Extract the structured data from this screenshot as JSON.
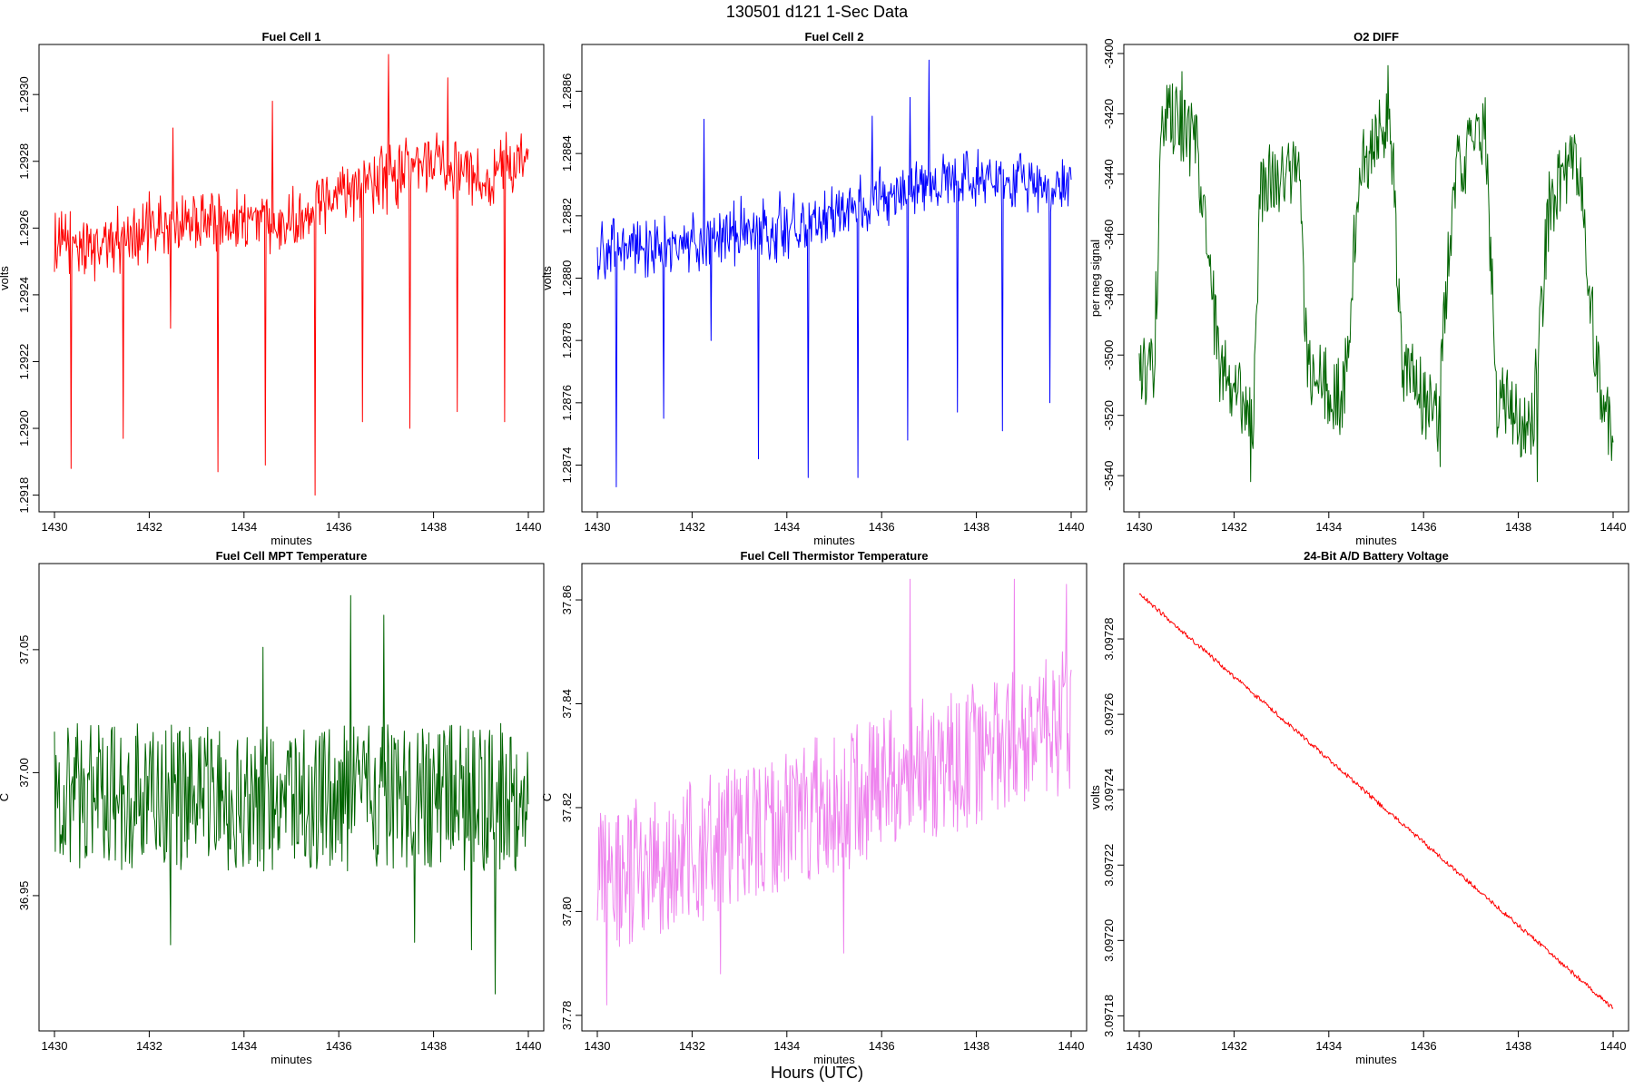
{
  "figure": {
    "title": "130501   d121   1-Sec Data",
    "xlabel": "Hours (UTC)"
  },
  "chart_data": [
    {
      "type": "line",
      "title": "Fuel Cell 1",
      "xlabel": "minutes",
      "ylabel": "volts",
      "color": "#ff0000",
      "xlim": [
        1430,
        1440
      ],
      "ylim": [
        1.29175,
        1.29315
      ],
      "xticks": [
        "1430",
        "1432",
        "1434",
        "1436",
        "1438",
        "1440"
      ],
      "yticks": [
        "1.2918",
        "1.2920",
        "1.2922",
        "1.2924",
        "1.2926",
        "1.2928",
        "1.2930"
      ],
      "ytick_values": [
        1.2918,
        1.292,
        1.2922,
        1.2924,
        1.2926,
        1.2928,
        1.293
      ],
      "noise": "spiky",
      "x": [
        1430,
        1431,
        1432,
        1433,
        1434,
        1435,
        1436,
        1437,
        1438,
        1439,
        1440
      ],
      "y": [
        1.29255,
        1.29255,
        1.2926,
        1.29262,
        1.29262,
        1.29262,
        1.29272,
        1.29275,
        1.2928,
        1.29276,
        1.2928
      ],
      "noise_amp": 0.00012,
      "dips": [
        [
          1430.35,
          1.29188
        ],
        [
          1431.45,
          1.29197
        ],
        [
          1432.45,
          1.2923
        ],
        [
          1433.45,
          1.29187
        ],
        [
          1434.45,
          1.29189
        ],
        [
          1435.5,
          1.2918
        ],
        [
          1436.5,
          1.29202
        ],
        [
          1437.5,
          1.292
        ],
        [
          1438.5,
          1.29205
        ],
        [
          1439.5,
          1.29202
        ]
      ],
      "peaks": [
        [
          1437.05,
          1.29312
        ],
        [
          1432.5,
          1.2929
        ],
        [
          1438.3,
          1.29305
        ],
        [
          1434.6,
          1.29298
        ]
      ]
    },
    {
      "type": "line",
      "title": "Fuel Cell 2",
      "xlabel": "minutes",
      "ylabel": "volts",
      "color": "#0000ff",
      "xlim": [
        1430,
        1440
      ],
      "ylim": [
        1.28725,
        1.28875
      ],
      "xticks": [
        "1430",
        "1432",
        "1434",
        "1436",
        "1438",
        "1440"
      ],
      "yticks": [
        "1.2874",
        "1.2876",
        "1.2878",
        "1.2880",
        "1.2882",
        "1.2884",
        "1.2886"
      ],
      "ytick_values": [
        1.2874,
        1.2876,
        1.2878,
        1.288,
        1.2882,
        1.2884,
        1.2886
      ],
      "noise": "spiky",
      "x": [
        1430,
        1431,
        1432,
        1433,
        1434,
        1435,
        1436,
        1437,
        1438,
        1439,
        1440
      ],
      "y": [
        1.28808,
        1.2881,
        1.28812,
        1.28815,
        1.28817,
        1.2882,
        1.28825,
        1.2883,
        1.28832,
        1.2883,
        1.2883
      ],
      "noise_amp": 0.00012,
      "dips": [
        [
          1430.4,
          1.28733
        ],
        [
          1431.4,
          1.28755
        ],
        [
          1432.4,
          1.2878
        ],
        [
          1433.4,
          1.28742
        ],
        [
          1434.45,
          1.28736
        ],
        [
          1435.5,
          1.28736
        ],
        [
          1436.55,
          1.28748
        ],
        [
          1437.6,
          1.28757
        ],
        [
          1438.55,
          1.28751
        ],
        [
          1439.55,
          1.2876
        ]
      ],
      "peaks": [
        [
          1437.0,
          1.2887
        ],
        [
          1432.25,
          1.28851
        ],
        [
          1436.6,
          1.28858
        ],
        [
          1435.8,
          1.28852
        ]
      ]
    },
    {
      "type": "line",
      "title": "O2 DIFF",
      "xlabel": "minutes",
      "ylabel": "per meg signal",
      "color": "#006400",
      "xlim": [
        1430,
        1440
      ],
      "ylim": [
        -3552,
        -3397
      ],
      "xticks": [
        "1430",
        "1432",
        "1434",
        "1436",
        "1438",
        "1440"
      ],
      "yticks": [
        "-3540",
        "-3520",
        "-3500",
        "-3480",
        "-3460",
        "-3440",
        "-3420",
        "-3400"
      ],
      "ytick_values": [
        -3540,
        -3520,
        -3500,
        -3480,
        -3460,
        -3440,
        -3420,
        -3400
      ],
      "noise": "uniform",
      "x": [
        1430,
        1430.3,
        1430.5,
        1431.2,
        1431.7,
        1432.4,
        1432.55,
        1433.35,
        1433.55,
        1434.3,
        1434.65,
        1435.3,
        1435.55,
        1436.3,
        1436.65,
        1437.3,
        1437.55,
        1438.3,
        1438.65,
        1439.3,
        1439.65,
        1440
      ],
      "y": [
        -3505,
        -3505,
        -3420,
        -3430,
        -3505,
        -3520,
        -3445,
        -3435,
        -3505,
        -3515,
        -3440,
        -3420,
        -3505,
        -3520,
        -3440,
        -3425,
        -3515,
        -3525,
        -3450,
        -3435,
        -3505,
        -3530
      ],
      "noise_amp": 13,
      "dips": [
        [
          1432.35,
          -3542
        ],
        [
          1436.35,
          -3537
        ],
        [
          1438.4,
          -3542
        ],
        [
          1439.9,
          -3533
        ]
      ],
      "peaks": [
        [
          1435.25,
          -3404
        ],
        [
          1430.9,
          -3406
        ]
      ]
    },
    {
      "type": "line",
      "title": "Fuel Cell MPT Temperature",
      "xlabel": "minutes",
      "ylabel": "C",
      "color": "#006400",
      "xlim": [
        1430,
        1440
      ],
      "ylim": [
        36.895,
        37.085
      ],
      "xticks": [
        "1430",
        "1432",
        "1434",
        "1436",
        "1438",
        "1440"
      ],
      "yticks": [
        "36.95",
        "37.00",
        "37.05"
      ],
      "ytick_values": [
        36.95,
        37.0,
        37.05
      ],
      "noise": "uniform",
      "x": [
        1430,
        1432,
        1434,
        1436,
        1438,
        1440
      ],
      "y": [
        36.99,
        36.99,
        36.99,
        36.99,
        36.99,
        36.99
      ],
      "noise_amp": 0.03,
      "dips": [
        [
          1432.45,
          36.93
        ],
        [
          1437.6,
          36.931
        ],
        [
          1438.8,
          36.928
        ],
        [
          1439.3,
          36.91
        ]
      ],
      "peaks": [
        [
          1436.25,
          37.072
        ],
        [
          1436.95,
          37.064
        ],
        [
          1434.4,
          37.051
        ]
      ]
    },
    {
      "type": "line",
      "title": "Fuel Cell Thermistor Temperature",
      "xlabel": "minutes",
      "ylabel": "C",
      "color": "#ee82ee",
      "xlim": [
        1430,
        1440
      ],
      "ylim": [
        37.777,
        37.867
      ],
      "xticks": [
        "1430",
        "1432",
        "1434",
        "1436",
        "1438",
        "1440"
      ],
      "yticks": [
        "37.78",
        "37.80",
        "37.82",
        "37.84",
        "37.86"
      ],
      "ytick_values": [
        37.78,
        37.8,
        37.82,
        37.84,
        37.86
      ],
      "noise": "uniform",
      "x": [
        1430,
        1440
      ],
      "y": [
        37.805,
        37.837
      ],
      "noise_amp": 0.014,
      "dips": [
        [
          1430.2,
          37.782
        ],
        [
          1432.6,
          37.788
        ],
        [
          1435.2,
          37.792
        ]
      ],
      "peaks": [
        [
          1436.6,
          37.864
        ],
        [
          1438.8,
          37.864
        ],
        [
          1439.9,
          37.863
        ]
      ]
    },
    {
      "type": "line",
      "title": "24-Bit A/D Battery Voltage",
      "xlabel": "minutes",
      "ylabel": "volts",
      "color": "#ff0000",
      "xlim": [
        1430,
        1440
      ],
      "ylim": [
        3.097176,
        3.0973
      ],
      "xticks": [
        "1430",
        "1432",
        "1434",
        "1436",
        "1438",
        "1440"
      ],
      "yticks": [
        "3.09718",
        "3.09720",
        "3.09722",
        "3.09724",
        "3.09726",
        "3.09728"
      ],
      "ytick_values": [
        3.09718,
        3.0972,
        3.09722,
        3.09724,
        3.09726,
        3.09728
      ],
      "noise": "small",
      "x": [
        1430,
        1440
      ],
      "y": [
        3.097292,
        3.097182
      ],
      "noise_amp": 6e-07,
      "dips": [],
      "peaks": []
    }
  ]
}
